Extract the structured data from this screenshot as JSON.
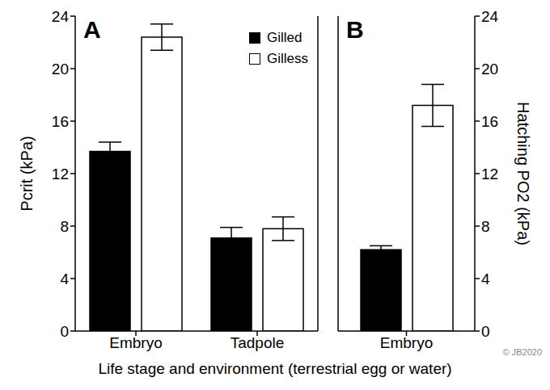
{
  "xlabel": "Life stage and environment (terrestrial egg or water)",
  "annotation": "© JB2020",
  "chart_data": [
    {
      "type": "bar",
      "title": "A",
      "ylabel": "Pcrit (kPa)",
      "categories": [
        "Embryo",
        "Tadpole"
      ],
      "series": [
        {
          "name": "Gilled",
          "color": "#000000",
          "values": [
            13.7,
            7.1
          ],
          "errors": [
            0.7,
            0.8
          ]
        },
        {
          "name": "Gilless",
          "color": "#ffffff",
          "values": [
            22.4,
            7.8
          ],
          "errors": [
            1.0,
            0.9
          ]
        }
      ],
      "ylim": [
        0,
        24
      ],
      "yticks": [
        0,
        4,
        8,
        12,
        16,
        20,
        24
      ],
      "legend": "upper right"
    },
    {
      "type": "bar",
      "title": "B",
      "ylabel": "Hatching PO2 (kPa)",
      "categories": [
        "Embryo"
      ],
      "series": [
        {
          "name": "Gilled",
          "color": "#000000",
          "values": [
            6.2
          ],
          "errors": [
            0.3
          ],
          "axis": "y2"
        },
        {
          "name": "Gilless",
          "color": "#ffffff",
          "values": [
            17.2
          ],
          "errors": [
            1.6
          ],
          "axis": "y2"
        }
      ],
      "y2lim": [
        0,
        24
      ],
      "y2ticks": [
        0,
        4,
        8,
        12,
        16,
        20,
        24
      ]
    }
  ]
}
